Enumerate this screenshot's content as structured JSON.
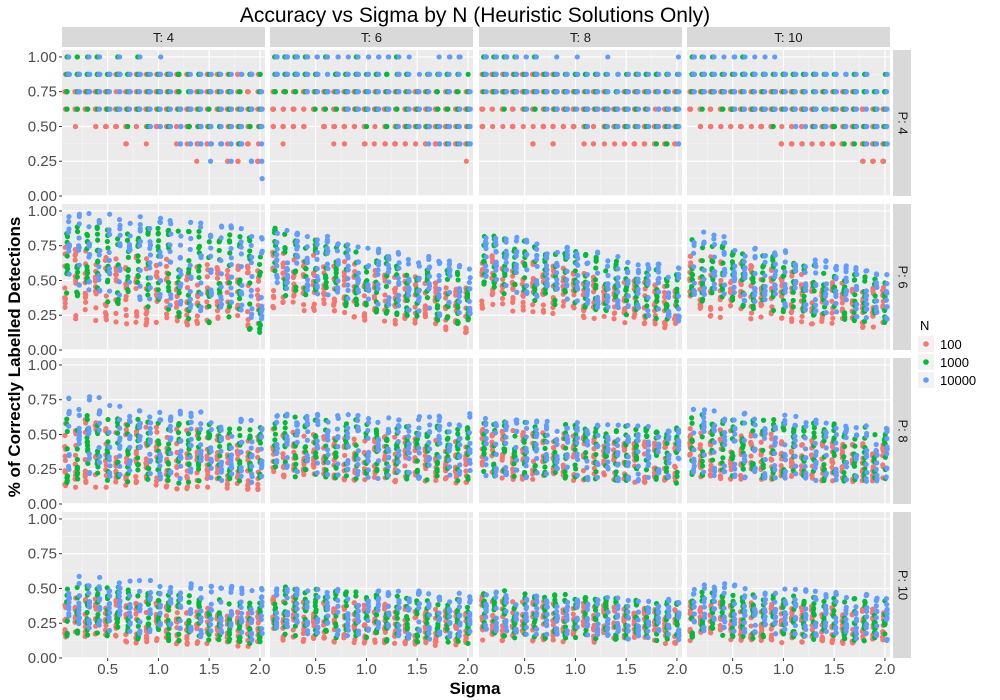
{
  "chart_data": {
    "type": "scatter",
    "title": "Accuracy vs Sigma by N (Heuristic Solutions Only)",
    "xlabel": "Sigma",
    "ylabel": "% of Correctly Labelled Detections",
    "xlim": [
      0.05,
      2.05
    ],
    "ylim": [
      0,
      1.05
    ],
    "x_ticks": [
      "0.5",
      "1.0",
      "1.5",
      "2.0"
    ],
    "y_ticks": [
      "0.00",
      "0.25",
      "0.50",
      "0.75",
      "1.00"
    ],
    "facet_cols": {
      "var": "T",
      "labels": [
        "T: 4",
        "T: 6",
        "T: 8",
        "T: 10"
      ]
    },
    "facet_rows": {
      "var": "P",
      "labels": [
        "P: 4",
        "P: 6",
        "P: 8",
        "P: 10"
      ]
    },
    "legend": {
      "title": "N",
      "position": "right",
      "entries": [
        {
          "label": "100",
          "color": "#F8766D"
        },
        {
          "label": "1000",
          "color": "#00BA38"
        },
        {
          "label": "10000",
          "color": "#619CFF"
        }
      ]
    },
    "sigma_values": [
      0.1,
      0.2,
      0.3,
      0.4,
      0.5,
      0.6,
      0.7,
      0.8,
      0.9,
      1.0,
      1.1,
      1.2,
      1.3,
      1.4,
      1.5,
      1.6,
      1.7,
      1.8,
      1.9,
      2.0
    ],
    "panels": [
      {
        "P": 4,
        "T": 4,
        "ranges": {
          "100": [
            [
              0.5,
              0.88
            ],
            [
              0.2,
              0.88
            ]
          ],
          "1000": [
            [
              0.62,
              1.0
            ],
            [
              0.37,
              0.88
            ]
          ],
          "10000": [
            [
              0.75,
              1.0
            ],
            [
              0.12,
              0.88
            ]
          ]
        }
      },
      {
        "P": 4,
        "T": 6,
        "ranges": {
          "100": [
            [
              0.42,
              0.83
            ],
            [
              0.3,
              0.75
            ]
          ],
          "1000": [
            [
              0.75,
              1.0
            ],
            [
              0.33,
              0.92
            ]
          ],
          "10000": [
            [
              0.83,
              1.0
            ],
            [
              0.3,
              1.0
            ]
          ]
        }
      },
      {
        "P": 4,
        "T": 8,
        "ranges": {
          "100": [
            [
              0.44,
              0.88
            ],
            [
              0.35,
              0.75
            ]
          ],
          "1000": [
            [
              0.69,
              1.0
            ],
            [
              0.35,
              0.88
            ]
          ],
          "10000": [
            [
              0.75,
              1.0
            ],
            [
              0.38,
              0.94
            ]
          ]
        }
      },
      {
        "P": 4,
        "T": 10,
        "ranges": {
          "100": [
            [
              0.5,
              0.8
            ],
            [
              0.25,
              0.7
            ]
          ],
          "1000": [
            [
              0.7,
              1.0
            ],
            [
              0.33,
              0.85
            ]
          ],
          "10000": [
            [
              0.75,
              1.0
            ],
            [
              0.35,
              0.9
            ]
          ]
        }
      },
      {
        "P": 6,
        "T": 4,
        "ranges": {
          "100": [
            [
              0.2,
              0.75
            ],
            [
              0.15,
              0.6
            ]
          ],
          "1000": [
            [
              0.4,
              0.92
            ],
            [
              0.12,
              0.83
            ]
          ],
          "10000": [
            [
              0.45,
              1.0
            ],
            [
              0.2,
              0.92
            ]
          ]
        }
      },
      {
        "P": 6,
        "T": 6,
        "ranges": {
          "100": [
            [
              0.3,
              0.75
            ],
            [
              0.12,
              0.45
            ]
          ],
          "1000": [
            [
              0.4,
              0.88
            ],
            [
              0.15,
              0.55
            ]
          ],
          "10000": [
            [
              0.45,
              0.9
            ],
            [
              0.2,
              0.62
            ]
          ]
        }
      },
      {
        "P": 6,
        "T": 8,
        "ranges": {
          "100": [
            [
              0.3,
              0.7
            ],
            [
              0.15,
              0.45
            ]
          ],
          "1000": [
            [
              0.4,
              0.85
            ],
            [
              0.2,
              0.55
            ]
          ],
          "10000": [
            [
              0.45,
              0.85
            ],
            [
              0.2,
              0.6
            ]
          ]
        }
      },
      {
        "P": 6,
        "T": 10,
        "ranges": {
          "100": [
            [
              0.25,
              0.7
            ],
            [
              0.15,
              0.45
            ]
          ],
          "1000": [
            [
              0.35,
              0.8
            ],
            [
              0.18,
              0.5
            ]
          ],
          "10000": [
            [
              0.4,
              0.87
            ],
            [
              0.2,
              0.55
            ]
          ]
        }
      },
      {
        "P": 8,
        "T": 4,
        "ranges": {
          "100": [
            [
              0.12,
              0.62
            ],
            [
              0.1,
              0.5
            ]
          ],
          "1000": [
            [
              0.15,
              0.65
            ],
            [
              0.15,
              0.55
            ]
          ],
          "10000": [
            [
              0.2,
              0.8
            ],
            [
              0.15,
              0.6
            ]
          ]
        }
      },
      {
        "P": 8,
        "T": 6,
        "ranges": {
          "100": [
            [
              0.18,
              0.55
            ],
            [
              0.15,
              0.45
            ]
          ],
          "1000": [
            [
              0.2,
              0.65
            ],
            [
              0.15,
              0.55
            ]
          ],
          "10000": [
            [
              0.22,
              0.65
            ],
            [
              0.15,
              0.68
            ]
          ]
        }
      },
      {
        "P": 8,
        "T": 8,
        "ranges": {
          "100": [
            [
              0.18,
              0.55
            ],
            [
              0.15,
              0.45
            ]
          ],
          "1000": [
            [
              0.2,
              0.6
            ],
            [
              0.15,
              0.55
            ]
          ],
          "10000": [
            [
              0.2,
              0.62
            ],
            [
              0.15,
              0.55
            ]
          ]
        }
      },
      {
        "P": 8,
        "T": 10,
        "ranges": {
          "100": [
            [
              0.18,
              0.55
            ],
            [
              0.15,
              0.45
            ]
          ],
          "1000": [
            [
              0.2,
              0.65
            ],
            [
              0.15,
              0.55
            ]
          ],
          "10000": [
            [
              0.2,
              0.72
            ],
            [
              0.15,
              0.55
            ]
          ]
        }
      },
      {
        "P": 10,
        "T": 4,
        "ranges": {
          "100": [
            [
              0.12,
              0.45
            ],
            [
              0.08,
              0.35
            ]
          ],
          "1000": [
            [
              0.15,
              0.55
            ],
            [
              0.1,
              0.4
            ]
          ],
          "10000": [
            [
              0.2,
              0.6
            ],
            [
              0.12,
              0.5
            ]
          ]
        }
      },
      {
        "P": 10,
        "T": 6,
        "ranges": {
          "100": [
            [
              0.12,
              0.45
            ],
            [
              0.08,
              0.35
            ]
          ],
          "1000": [
            [
              0.15,
              0.52
            ],
            [
              0.1,
              0.42
            ]
          ],
          "10000": [
            [
              0.18,
              0.5
            ],
            [
              0.12,
              0.48
            ]
          ]
        }
      },
      {
        "P": 10,
        "T": 8,
        "ranges": {
          "100": [
            [
              0.12,
              0.45
            ],
            [
              0.1,
              0.35
            ]
          ],
          "1000": [
            [
              0.15,
              0.5
            ],
            [
              0.12,
              0.4
            ]
          ],
          "10000": [
            [
              0.18,
              0.48
            ],
            [
              0.12,
              0.42
            ]
          ]
        }
      },
      {
        "P": 10,
        "T": 10,
        "ranges": {
          "100": [
            [
              0.12,
              0.42
            ],
            [
              0.1,
              0.35
            ]
          ],
          "1000": [
            [
              0.15,
              0.48
            ],
            [
              0.12,
              0.42
            ]
          ],
          "10000": [
            [
              0.2,
              0.55
            ],
            [
              0.12,
              0.45
            ]
          ]
        }
      }
    ],
    "points_per_group": 10,
    "grid": true
  }
}
